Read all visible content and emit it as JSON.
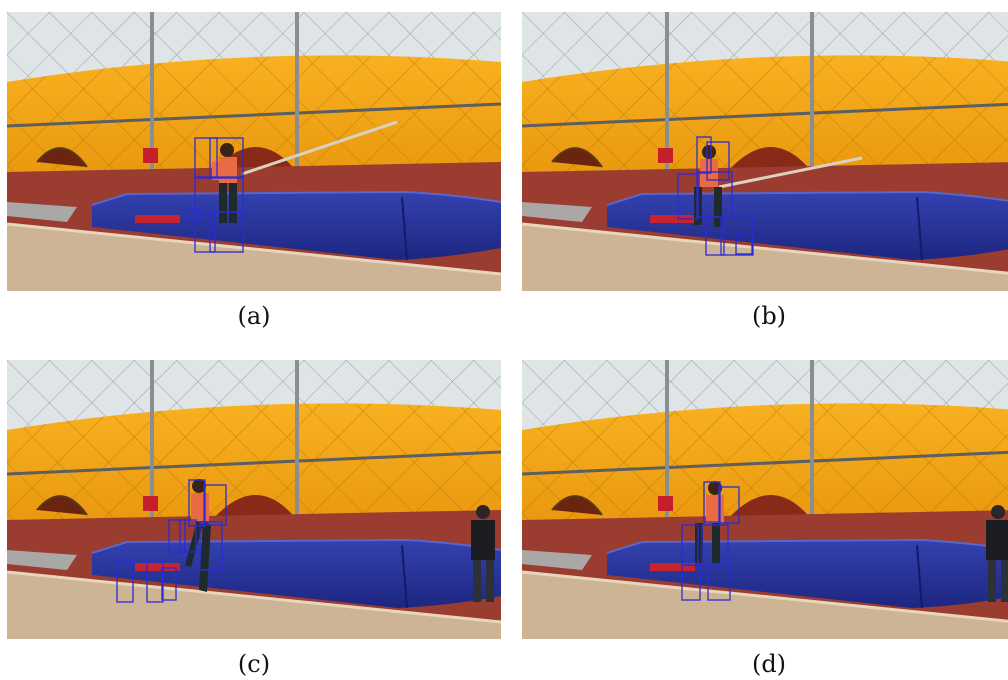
{
  "figure": {
    "panels": [
      {
        "label": "(a)"
      },
      {
        "label": "(b)"
      },
      {
        "label": "(c)"
      },
      {
        "label": "(d)"
      }
    ]
  },
  "colors": {
    "dome_orange": "#f3a20b",
    "dome_orange_dark": "#d07f06",
    "dome_ceiling": "#dfe4e6",
    "track": "#9b3c30",
    "mat_blue": "#24309a",
    "board": "#cdb495",
    "bbox": "#2b2bd6"
  }
}
